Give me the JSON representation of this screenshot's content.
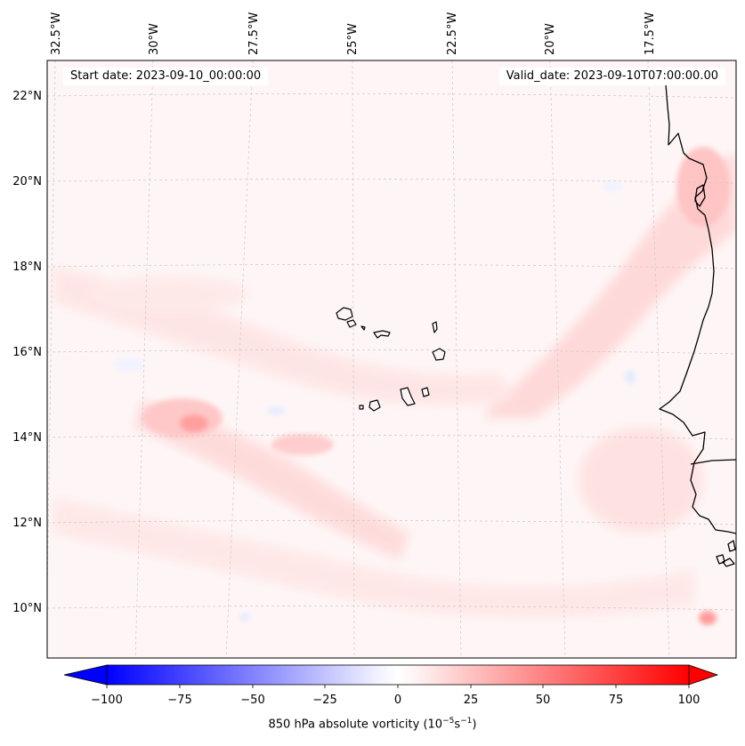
{
  "header": {
    "start_date": "Start date: 2023-09-10_00:00:00",
    "valid_date": "Valid_date: 2023-09-10T07:00:00.00"
  },
  "axes": {
    "lon_labels": [
      "32.5°W",
      "30°W",
      "27.5°W",
      "25°W",
      "22.5°W",
      "20°W",
      "17.5°W"
    ],
    "lat_labels": [
      "22°N",
      "20°N",
      "18°N",
      "16°N",
      "14°N",
      "12°N",
      "10°N"
    ]
  },
  "colorbar": {
    "title_prefix": "850 hPa absolute vorticity (10",
    "unit_exp1": "−5",
    "unit_mid": "s",
    "unit_exp2": "−1",
    "title_suffix": ")",
    "min": -100,
    "max": 100,
    "ticks": [
      "−100",
      "−75",
      "−50",
      "−25",
      "0",
      "25",
      "50",
      "75",
      "100"
    ],
    "low_color": "#0000ff",
    "mid_color": "#ffffff",
    "high_color": "#ff0000"
  },
  "chart_data": {
    "type": "heatmap",
    "variable": "850 hPa absolute vorticity",
    "units": "10^-5 s^-1",
    "lon_range": [
      -33.0,
      -15.5
    ],
    "lat_range": [
      9.0,
      22.5
    ],
    "features": [
      {
        "name": "vorticity-maximum-west",
        "lon": -29.0,
        "lat": 14.3,
        "value": 30
      },
      {
        "name": "vorticity-band-southeast",
        "lon": -25.5,
        "lat": 13.0,
        "value": 15
      },
      {
        "name": "coastal-band-north",
        "lon": -17.0,
        "lat": 20.0,
        "value": 20
      },
      {
        "name": "vorticity-spot-southeast",
        "lon": -16.5,
        "lat": 9.8,
        "value": 25
      }
    ]
  }
}
